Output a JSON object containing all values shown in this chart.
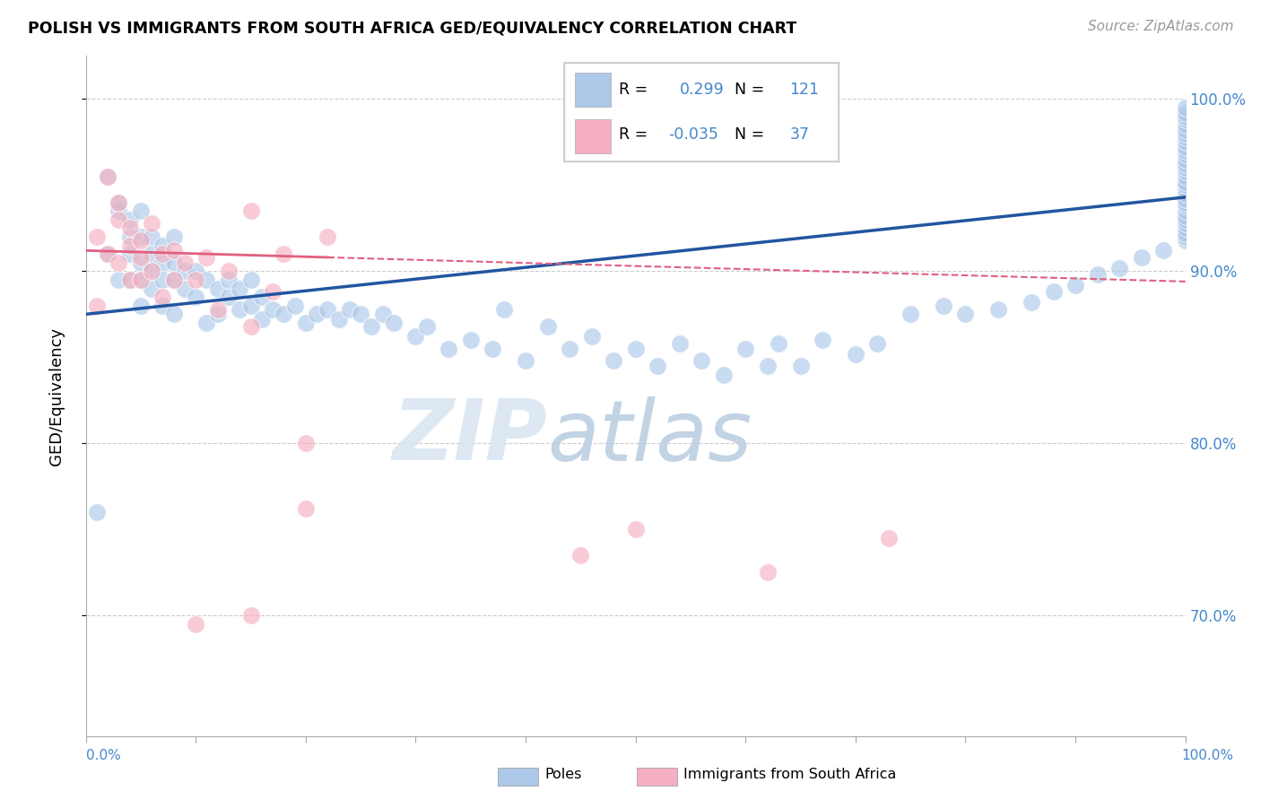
{
  "title": "POLISH VS IMMIGRANTS FROM SOUTH AFRICA GED/EQUIVALENCY CORRELATION CHART",
  "source": "Source: ZipAtlas.com",
  "ylabel": "GED/Equivalency",
  "watermark": "ZIPatlas",
  "legend_blue_r": "0.299",
  "legend_blue_n": "121",
  "legend_pink_r": "-0.035",
  "legend_pink_n": "37",
  "blue_color": "#adc8e8",
  "pink_color": "#f5afc0",
  "blue_line_color": "#2255a0",
  "pink_line_color": "#e06080",
  "background_color": "#ffffff",
  "grid_color": "#cccccc",
  "right_tick_color": "#4488cc",
  "y_min": 0.63,
  "y_max": 1.025,
  "x_min": 0.0,
  "x_max": 1.0,
  "y_ticks": [
    0.7,
    0.8,
    0.9,
    1.0
  ],
  "y_tick_labels": [
    "70.0%",
    "80.0%",
    "90.0%",
    "100.0%"
  ],
  "poles_x": [
    0.01,
    0.02,
    0.02,
    0.03,
    0.03,
    0.03,
    0.04,
    0.04,
    0.04,
    0.04,
    0.05,
    0.05,
    0.05,
    0.05,
    0.05,
    0.06,
    0.06,
    0.06,
    0.06,
    0.07,
    0.07,
    0.07,
    0.07,
    0.08,
    0.08,
    0.08,
    0.08,
    0.09,
    0.09,
    0.1,
    0.1,
    0.11,
    0.11,
    0.12,
    0.12,
    0.13,
    0.13,
    0.14,
    0.14,
    0.15,
    0.15,
    0.16,
    0.16,
    0.17,
    0.18,
    0.19,
    0.2,
    0.21,
    0.22,
    0.23,
    0.24,
    0.25,
    0.26,
    0.27,
    0.28,
    0.3,
    0.31,
    0.33,
    0.35,
    0.37,
    0.38,
    0.4,
    0.42,
    0.44,
    0.46,
    0.48,
    0.5,
    0.52,
    0.54,
    0.56,
    0.58,
    0.6,
    0.62,
    0.63,
    0.65,
    0.67,
    0.7,
    0.72,
    0.75,
    0.78,
    0.8,
    0.83,
    0.86,
    0.88,
    0.9,
    0.92,
    0.94,
    0.96,
    0.98,
    1.0,
    1.0,
    1.0,
    1.0,
    1.0,
    1.0,
    1.0,
    1.0,
    1.0,
    1.0,
    1.0,
    1.0,
    1.0,
    1.0,
    1.0,
    1.0,
    1.0,
    1.0,
    1.0,
    1.0,
    1.0,
    1.0,
    1.0,
    1.0,
    1.0,
    1.0,
    1.0,
    1.0,
    1.0,
    1.0,
    1.0,
    1.0
  ],
  "poles_y": [
    0.76,
    0.91,
    0.955,
    0.935,
    0.895,
    0.94,
    0.92,
    0.93,
    0.895,
    0.91,
    0.905,
    0.92,
    0.935,
    0.895,
    0.88,
    0.91,
    0.9,
    0.92,
    0.89,
    0.905,
    0.895,
    0.915,
    0.88,
    0.895,
    0.905,
    0.92,
    0.875,
    0.9,
    0.89,
    0.9,
    0.885,
    0.895,
    0.87,
    0.89,
    0.875,
    0.885,
    0.895,
    0.878,
    0.89,
    0.88,
    0.895,
    0.872,
    0.885,
    0.878,
    0.875,
    0.88,
    0.87,
    0.875,
    0.878,
    0.872,
    0.878,
    0.875,
    0.868,
    0.875,
    0.87,
    0.862,
    0.868,
    0.855,
    0.86,
    0.855,
    0.878,
    0.848,
    0.868,
    0.855,
    0.862,
    0.848,
    0.855,
    0.845,
    0.858,
    0.848,
    0.84,
    0.855,
    0.845,
    0.858,
    0.845,
    0.86,
    0.852,
    0.858,
    0.875,
    0.88,
    0.875,
    0.878,
    0.882,
    0.888,
    0.892,
    0.898,
    0.902,
    0.908,
    0.912,
    0.918,
    0.92,
    0.922,
    0.925,
    0.928,
    0.93,
    0.932,
    0.935,
    0.938,
    0.94,
    0.942,
    0.945,
    0.948,
    0.95,
    0.952,
    0.955,
    0.958,
    0.96,
    0.962,
    0.965,
    0.968,
    0.97,
    0.972,
    0.975,
    0.978,
    0.98,
    0.982,
    0.985,
    0.988,
    0.99,
    0.992,
    0.995
  ],
  "immigrants_x": [
    0.01,
    0.01,
    0.02,
    0.02,
    0.03,
    0.03,
    0.03,
    0.04,
    0.04,
    0.04,
    0.05,
    0.05,
    0.05,
    0.06,
    0.06,
    0.07,
    0.07,
    0.08,
    0.08,
    0.09,
    0.1,
    0.11,
    0.12,
    0.13,
    0.15,
    0.17,
    0.2,
    0.22,
    0.15,
    0.18,
    0.5,
    0.2,
    0.62,
    0.73,
    0.15,
    0.45,
    0.1
  ],
  "immigrants_y": [
    0.92,
    0.88,
    0.955,
    0.91,
    0.94,
    0.905,
    0.93,
    0.915,
    0.895,
    0.925,
    0.908,
    0.895,
    0.918,
    0.9,
    0.928,
    0.885,
    0.91,
    0.895,
    0.912,
    0.905,
    0.895,
    0.908,
    0.878,
    0.9,
    0.935,
    0.888,
    0.762,
    0.92,
    0.868,
    0.91,
    0.75,
    0.8,
    0.725,
    0.745,
    0.7,
    0.735,
    0.695
  ]
}
